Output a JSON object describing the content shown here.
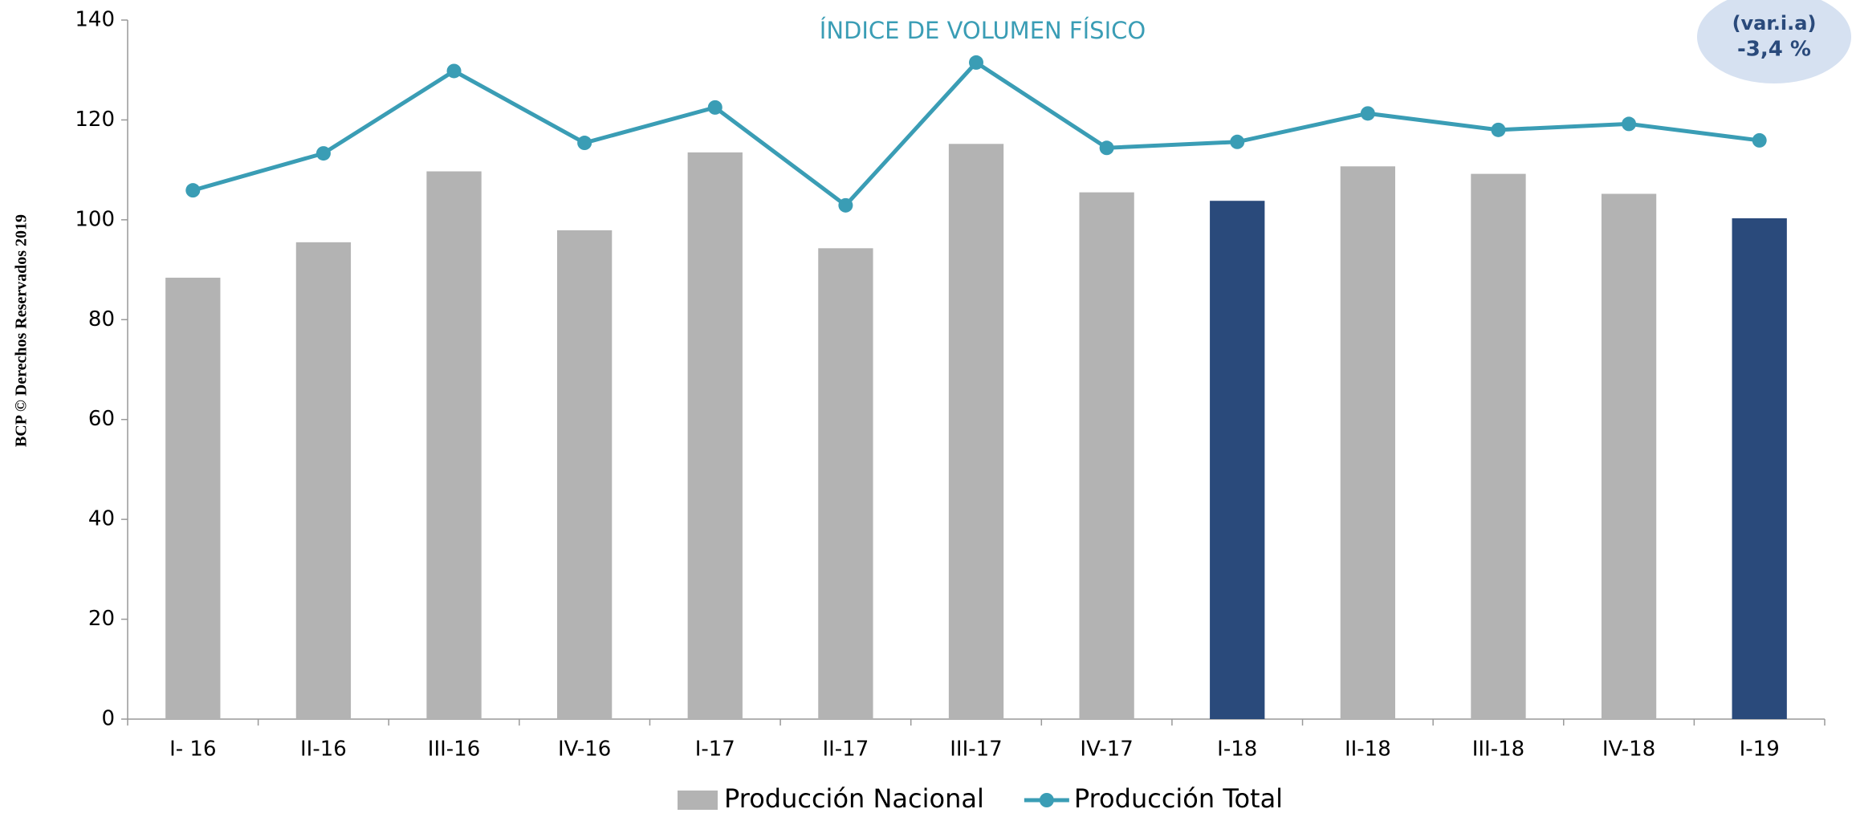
{
  "chart_data": {
    "type": "bar",
    "title": "ÍNDICE DE VOLUMEN FÍSICO",
    "side_label": "BCP © Derechos Reservados 2019",
    "annotation": [
      "(var.i.a)",
      "-3,4 %"
    ],
    "categories": [
      "I- 16",
      "II-16",
      "III-16",
      "IV-16",
      "I-17",
      "II-17",
      "III-17",
      "IV-17",
      "I-18",
      "II-18",
      "III-18",
      "IV-18",
      "I-19"
    ],
    "series": [
      {
        "name": "Producción Nacional",
        "type": "bar",
        "color": "#b3b3b3",
        "colors": [
          "#b3b3b3",
          "#b3b3b3",
          "#b3b3b3",
          "#b3b3b3",
          "#b3b3b3",
          "#b3b3b3",
          "#b3b3b3",
          "#b3b3b3",
          "#2a4a7b",
          "#b3b3b3",
          "#b3b3b3",
          "#b3b3b3",
          "#2a4a7b"
        ],
        "values": [
          88.4,
          95.5,
          109.7,
          97.9,
          113.5,
          94.3,
          115.2,
          105.5,
          103.8,
          110.7,
          109.2,
          105.2,
          100.3
        ]
      },
      {
        "name": "Producción Total",
        "type": "line",
        "color": "#3a9db5",
        "values": [
          105.9,
          113.3,
          129.8,
          115.4,
          122.5,
          102.9,
          131.5,
          114.4,
          115.6,
          121.3,
          118.0,
          119.2,
          115.9
        ]
      }
    ],
    "ylim": [
      0,
      140
    ],
    "yticks": [
      0,
      20,
      40,
      60,
      80,
      100,
      120,
      140
    ],
    "grid": false
  }
}
